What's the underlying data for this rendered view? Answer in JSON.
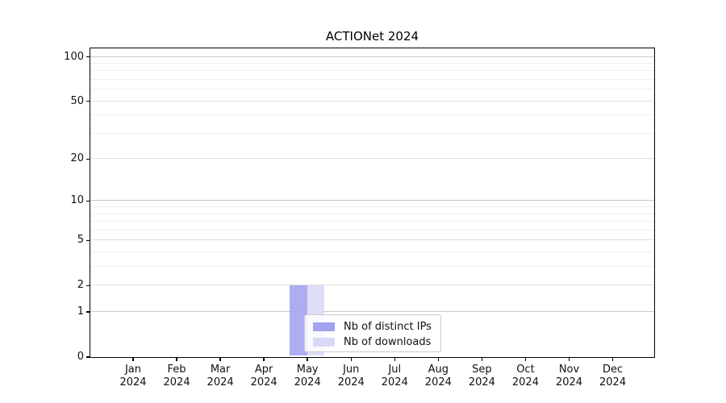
{
  "figure": {
    "background": "#ffffff"
  },
  "chart_data": {
    "type": "bar",
    "title": "ACTIONet 2024",
    "xlabel": "",
    "ylabel": "",
    "categories": [
      "Jan 2024",
      "Feb 2024",
      "Mar 2024",
      "Apr 2024",
      "May 2024",
      "Jun 2024",
      "Jul 2024",
      "Aug 2024",
      "Sep 2024",
      "Oct 2024",
      "Nov 2024",
      "Dec 2024"
    ],
    "series": [
      {
        "name": "Nb of distinct IPs",
        "color": "#a2a2ef",
        "values": [
          0,
          0,
          0,
          0,
          2,
          0,
          0,
          0,
          0,
          0,
          0,
          0
        ]
      },
      {
        "name": "Nb of downloads",
        "color": "#d9d9f8",
        "values": [
          0,
          0,
          0,
          0,
          2,
          0,
          0,
          0,
          0,
          0,
          0,
          0
        ]
      }
    ],
    "yscale": "log1p",
    "ylim": [
      0,
      113
    ],
    "yticks": [
      0,
      1,
      2,
      5,
      10,
      20,
      50,
      100
    ],
    "gridline_values": [
      1,
      2,
      3,
      4,
      5,
      6,
      7,
      8,
      9,
      10,
      20,
      30,
      40,
      50,
      60,
      70,
      80,
      90,
      100
    ],
    "grid": "both",
    "legend": {
      "position": "lower center",
      "entries": [
        "Nb of distinct IPs",
        "Nb of downloads"
      ]
    },
    "colors": {
      "grid_major": "#c8c8c8",
      "grid_mid": "#e0e0e0",
      "grid_minor": "#eeeeee",
      "axis": "#000000",
      "legend_border": "#cccccc"
    }
  }
}
